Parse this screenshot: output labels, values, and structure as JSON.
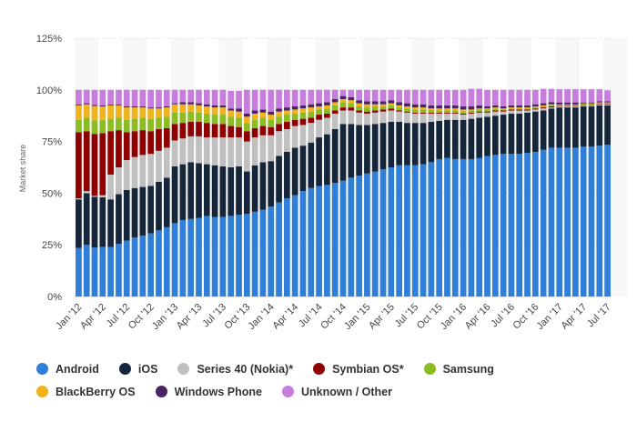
{
  "chart_data": {
    "type": "bar",
    "stacked": true,
    "ylabel": "Market share",
    "ylim": [
      0,
      125
    ],
    "yticks": [
      "0%",
      "25%",
      "50%",
      "75%",
      "100%",
      "125%"
    ],
    "grid": true,
    "legend_position": "bottom",
    "categories": [
      "Jan '12",
      "Feb '12",
      "Mar '12",
      "Apr '12",
      "May '12",
      "Jun '12",
      "Jul '12",
      "Aug '12",
      "Sep '12",
      "Oct '12",
      "Nov '12",
      "Dec '12",
      "Jan '13",
      "Feb '13",
      "Mar '13",
      "Apr '13",
      "May '13",
      "Jun '13",
      "Jul '13",
      "Aug '13",
      "Sep '13",
      "Oct '13",
      "Nov '13",
      "Dec '13",
      "Jan '14",
      "Feb '14",
      "Mar '14",
      "Apr '14",
      "May '14",
      "Jun '14",
      "Jul '14",
      "Aug '14",
      "Sep '14",
      "Oct '14",
      "Nov '14",
      "Dec '14",
      "Jan '15",
      "Feb '15",
      "Mar '15",
      "Apr '15",
      "May '15",
      "Jun '15",
      "Jul '15",
      "Aug '15",
      "Sep '15",
      "Oct '15",
      "Nov '15",
      "Dec '15",
      "Jan '16",
      "Feb '16",
      "Mar '16",
      "Apr '16",
      "May '16",
      "Jun '16",
      "Jul '16",
      "Aug '16",
      "Sep '16",
      "Oct '16",
      "Nov '16",
      "Dec '16",
      "Jan '17",
      "Feb '17",
      "Mar '17",
      "Apr '17",
      "May '17",
      "Jun '17",
      "Jul '17"
    ],
    "xtick_labels": [
      "Jan '12",
      "Apr '12",
      "Jul '12",
      "Oct '12",
      "Jan '13",
      "Apr '13",
      "Jul '13",
      "Oct '13",
      "Jan '14",
      "Apr '14",
      "Jul '14",
      "Oct '14",
      "Jan '15",
      "Apr '15",
      "Jul '15",
      "Oct '15",
      "Jan '16",
      "Apr '16",
      "Jul '16",
      "Oct '16",
      "Jan '17",
      "Apr '17",
      "Jul '17"
    ],
    "series": [
      {
        "name": "Android",
        "color": "#2f7ed8",
        "values": [
          23.5,
          25.0,
          23.7,
          24.0,
          24.0,
          25.5,
          27.0,
          28.5,
          29.5,
          30.5,
          32.0,
          33.5,
          35.5,
          37.0,
          37.5,
          38.0,
          39.0,
          38.5,
          38.5,
          39.0,
          39.5,
          40.0,
          41.0,
          42.0,
          43.5,
          45.5,
          47.5,
          49.0,
          51.0,
          52.5,
          53.5,
          54.0,
          55.0,
          56.0,
          57.5,
          58.5,
          59.5,
          60.5,
          61.5,
          62.5,
          63.5,
          63.5,
          63.5,
          64.0,
          65.0,
          66.5,
          67.0,
          66.5,
          66.5,
          66.5,
          67.0,
          68.0,
          68.5,
          69.0,
          69.0,
          69.0,
          69.5,
          70.0,
          71.0,
          72.0,
          72.0,
          72.0,
          72.0,
          72.5,
          72.5,
          73.0,
          73.5
        ]
      },
      {
        "name": "iOS",
        "color": "#15263b",
        "values": [
          23.5,
          25.0,
          24.5,
          24.0,
          23.0,
          24.0,
          24.5,
          24.0,
          23.5,
          23.0,
          23.5,
          24.0,
          27.5,
          27.0,
          27.5,
          26.5,
          25.0,
          25.0,
          24.5,
          23.5,
          23.5,
          20.5,
          22.5,
          23.0,
          22.0,
          22.5,
          22.5,
          23.0,
          22.0,
          22.0,
          23.5,
          24.5,
          26.0,
          27.5,
          26.0,
          24.5,
          23.5,
          23.0,
          22.5,
          22.0,
          21.0,
          20.5,
          20.5,
          20.0,
          19.5,
          18.5,
          18.5,
          19.0,
          19.0,
          19.5,
          19.5,
          19.0,
          19.0,
          19.0,
          19.5,
          19.5,
          19.5,
          19.5,
          19.0,
          19.0,
          19.5,
          19.5,
          19.5,
          19.5,
          19.5,
          19.5,
          19.0
        ]
      },
      {
        "name": "Series 40 (Nokia)*",
        "color": "#c0c0c0",
        "values": [
          0.5,
          1.0,
          0.5,
          1.0,
          12.0,
          13.0,
          14.5,
          15.0,
          15.5,
          15.5,
          15.0,
          14.5,
          12.5,
          12.5,
          12.5,
          13.0,
          13.0,
          13.5,
          14.0,
          14.5,
          14.0,
          14.5,
          13.5,
          13.0,
          12.5,
          12.0,
          11.0,
          10.5,
          10.0,
          9.5,
          8.5,
          8.0,
          7.5,
          6.5,
          6.5,
          6.0,
          5.5,
          5.5,
          5.5,
          5.5,
          5.0,
          5.0,
          4.5,
          4.5,
          4.0,
          3.5,
          3.0,
          3.0,
          2.5,
          2.5,
          2.5,
          2.0,
          2.0,
          1.5,
          1.5,
          1.5,
          1.0,
          1.0,
          1.0,
          0.5,
          0.5,
          0.5,
          0.5,
          0.5,
          0.5,
          0.5,
          0.5
        ]
      },
      {
        "name": "Symbian OS*",
        "color": "#910000",
        "values": [
          32.0,
          29.0,
          30.0,
          30.0,
          21.0,
          18.0,
          13.5,
          12.5,
          12.0,
          11.0,
          10.5,
          9.5,
          8.0,
          7.5,
          7.0,
          7.0,
          7.0,
          6.5,
          6.5,
          5.5,
          5.0,
          5.0,
          4.5,
          4.5,
          4.0,
          3.5,
          3.5,
          3.0,
          3.0,
          2.5,
          2.5,
          2.0,
          1.5,
          1.5,
          1.5,
          1.0,
          1.0,
          1.0,
          1.0,
          1.0,
          0.5,
          0.5,
          0.5,
          0.5,
          0.5,
          0.5,
          0.5,
          0.5,
          0.5,
          0.5,
          0.5,
          0.5,
          0.5,
          0.5,
          0.5,
          0.5,
          0.5,
          0.5,
          0.5,
          0.5,
          0.3,
          0.3,
          0.3,
          0.3,
          0.3,
          0.3,
          0.3
        ]
      },
      {
        "name": "Samsung",
        "color": "#8bbc21",
        "values": [
          6.0,
          6.5,
          6.5,
          6.5,
          6.0,
          6.0,
          6.0,
          6.0,
          6.0,
          6.0,
          5.5,
          5.5,
          5.5,
          5.0,
          5.0,
          4.5,
          4.5,
          4.5,
          4.5,
          4.5,
          4.5,
          4.0,
          4.0,
          4.0,
          3.5,
          3.5,
          3.5,
          3.0,
          3.0,
          3.0,
          2.5,
          2.5,
          2.5,
          2.5,
          2.0,
          2.0,
          2.0,
          2.0,
          1.5,
          1.5,
          1.5,
          1.5,
          1.5,
          1.5,
          1.0,
          1.0,
          1.0,
          1.0,
          1.0,
          1.0,
          1.0,
          1.0,
          1.0,
          0.5,
          0.5,
          0.5,
          0.5,
          0.5,
          0.5,
          0.5,
          0.3,
          0.3,
          0.3,
          0.3,
          0.3,
          0.3,
          0.3
        ]
      },
      {
        "name": "BlackBerry OS",
        "color": "#f0b31d",
        "values": [
          7.0,
          6.5,
          7.0,
          6.5,
          6.5,
          6.0,
          6.0,
          5.5,
          5.0,
          5.0,
          4.5,
          4.5,
          4.0,
          4.0,
          3.5,
          3.5,
          3.5,
          3.5,
          3.5,
          3.0,
          3.0,
          3.0,
          3.0,
          2.5,
          2.5,
          2.5,
          2.0,
          2.0,
          2.0,
          2.0,
          1.5,
          1.5,
          1.5,
          1.5,
          1.5,
          1.5,
          1.5,
          1.0,
          1.0,
          1.0,
          1.0,
          1.0,
          1.0,
          1.0,
          1.0,
          1.0,
          1.0,
          1.0,
          1.0,
          0.5,
          0.5,
          0.5,
          0.5,
          0.5,
          0.5,
          0.5,
          0.5,
          0.5,
          0.5,
          0.5,
          0.3,
          0.3,
          0.3,
          0.3,
          0.3,
          0.3,
          0.3
        ]
      },
      {
        "name": "Windows Phone",
        "color": "#4a2266",
        "values": [
          0.5,
          0.5,
          0.5,
          0.5,
          0.5,
          0.5,
          0.5,
          0.5,
          0.5,
          0.5,
          0.5,
          0.5,
          0.5,
          1.0,
          1.0,
          1.0,
          1.0,
          1.0,
          1.0,
          1.0,
          1.5,
          1.5,
          1.5,
          1.5,
          1.5,
          1.5,
          1.5,
          1.5,
          1.5,
          1.5,
          1.5,
          1.5,
          1.5,
          1.5,
          1.5,
          1.5,
          1.5,
          1.5,
          1.5,
          1.5,
          1.5,
          1.5,
          1.5,
          1.5,
          1.5,
          1.5,
          1.5,
          1.5,
          1.5,
          1.5,
          1.5,
          1.0,
          1.0,
          1.0,
          1.0,
          1.0,
          1.0,
          1.0,
          1.0,
          1.0,
          1.0,
          1.0,
          1.0,
          0.5,
          0.5,
          0.5,
          0.5
        ]
      },
      {
        "name": "Unknown / Other",
        "color": "#c77ddd",
        "values": [
          7.0,
          6.5,
          7.3,
          7.5,
          7.0,
          7.0,
          8.0,
          8.0,
          8.0,
          8.5,
          8.5,
          8.0,
          6.5,
          6.0,
          6.0,
          6.5,
          7.0,
          7.5,
          7.5,
          8.5,
          8.5,
          11.5,
          10.0,
          9.5,
          10.5,
          9.0,
          8.5,
          8.0,
          7.5,
          7.0,
          6.5,
          6.0,
          4.5,
          3.0,
          3.5,
          5.0,
          5.5,
          5.5,
          5.5,
          5.0,
          6.0,
          6.5,
          7.0,
          7.0,
          7.5,
          7.5,
          7.5,
          7.5,
          8.0,
          8.5,
          8.0,
          8.0,
          7.5,
          8.0,
          7.5,
          7.5,
          7.5,
          7.0,
          7.0,
          6.5,
          6.4,
          6.4,
          6.4,
          6.4,
          6.4,
          5.9,
          5.4
        ]
      }
    ]
  }
}
